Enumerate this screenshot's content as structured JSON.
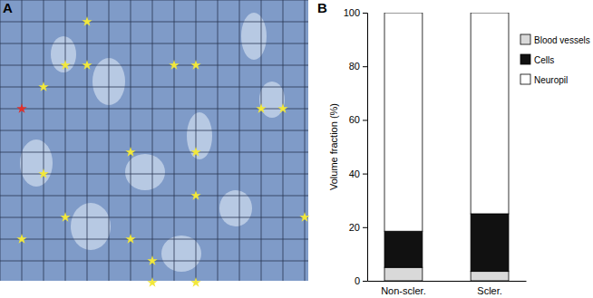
{
  "panel_labels": [
    "A",
    "B"
  ],
  "chart_data": {
    "type": "bar",
    "stacked": true,
    "legend": "upper right",
    "y_label": "Volume fraction (%)",
    "categories": [
      "Non-scler.",
      "Scler."
    ],
    "series": [
      {
        "name": "Blood vessels",
        "color": "#d9d9d9",
        "values": [
          5,
          3.5
        ]
      },
      {
        "name": "Cells",
        "color": "#111111",
        "values": [
          13.5,
          21.5
        ]
      },
      {
        "name": "Neuropil",
        "color": "#ffffff",
        "values": [
          81.5,
          75
        ]
      }
    ],
    "ylim": [
      0,
      100
    ],
    "yticks": [
      0,
      20,
      40,
      60,
      80,
      100
    ],
    "grid": false
  }
}
